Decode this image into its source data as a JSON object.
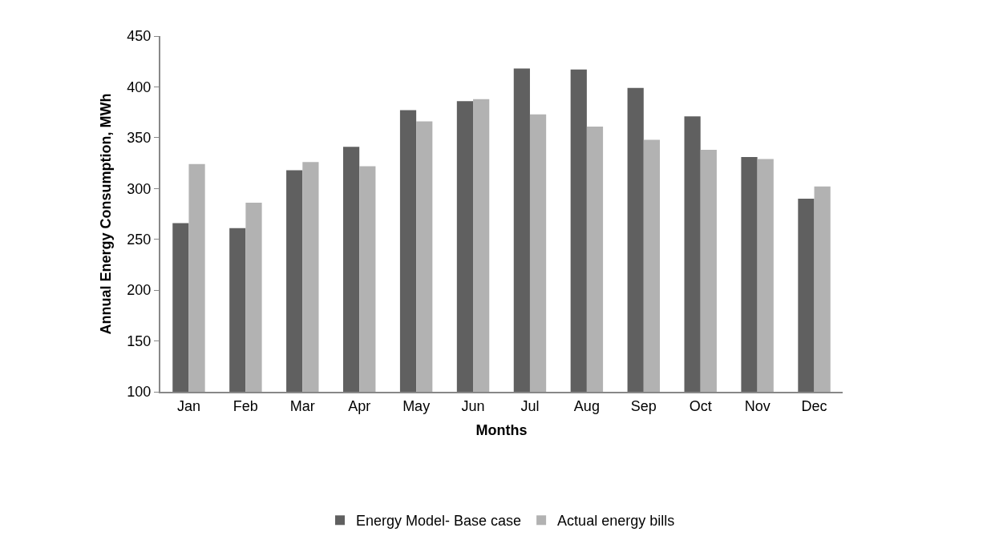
{
  "chart_data": {
    "type": "bar",
    "xlabel": "Months",
    "ylabel": "Annual Energy Consumption, MWh",
    "categories": [
      "Jan",
      "Feb",
      "Mar",
      "Apr",
      "May",
      "Jun",
      "Jul",
      "Aug",
      "Sep",
      "Oct",
      "Nov",
      "Dec"
    ],
    "series": [
      {
        "name": "Energy Model- Base case",
        "color": "#606060",
        "values": [
          266,
          261,
          318,
          341,
          377,
          386,
          418,
          417,
          399,
          371,
          331,
          290
        ]
      },
      {
        "name": "Actual energy bills",
        "color": "#b2b2b2",
        "values": [
          324,
          286,
          326,
          322,
          366,
          388,
          373,
          361,
          348,
          338,
          329,
          302
        ]
      }
    ],
    "ylim": [
      100,
      450
    ],
    "yticks": [
      100,
      150,
      200,
      250,
      300,
      350,
      400,
      450
    ],
    "grid": false,
    "legend": "bottom"
  }
}
